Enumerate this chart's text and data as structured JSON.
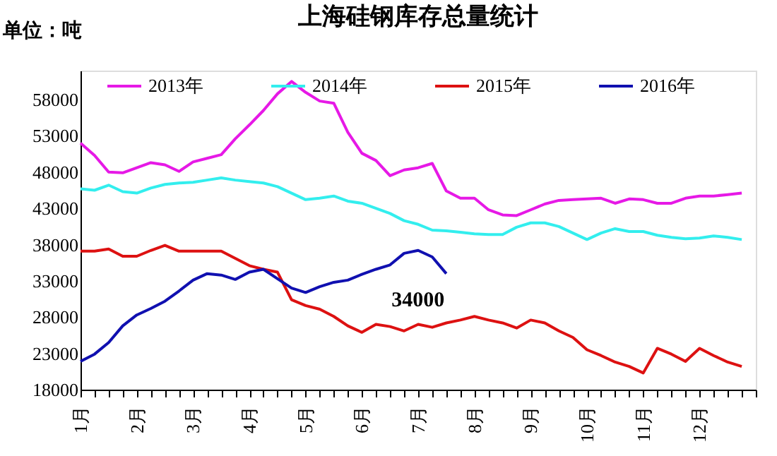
{
  "chart_data": {
    "type": "line",
    "title": "上海硅钢库存总量统计",
    "ylabel": "单位：吨",
    "categories": [
      "1月",
      null,
      null,
      null,
      "2月",
      null,
      null,
      null,
      "3月",
      null,
      null,
      null,
      "4月",
      null,
      null,
      null,
      "5月",
      null,
      null,
      null,
      "6月",
      null,
      null,
      null,
      "7月",
      null,
      null,
      null,
      "8月",
      null,
      null,
      null,
      "9月",
      null,
      null,
      null,
      "10月",
      null,
      null,
      null,
      "11月",
      null,
      null,
      null,
      "12月",
      null,
      null,
      null,
      null
    ],
    "ylim": [
      18000,
      62000
    ],
    "yticks": [
      18000,
      23000,
      28000,
      33000,
      38000,
      43000,
      48000,
      53000,
      58000
    ],
    "grid": false,
    "legend": "top",
    "marker": "none",
    "line_style": "solid",
    "series": [
      {
        "name": "2013年",
        "color": "#e619e6",
        "values": [
          52000,
          50300,
          48000,
          47900,
          48600,
          49300,
          49000,
          48100,
          49400,
          49900,
          50400,
          52600,
          54500,
          56500,
          58800,
          60500,
          59000,
          57800,
          57500,
          53500,
          50600,
          49600,
          47500,
          48300,
          48600,
          49200,
          45400,
          44400,
          44400,
          42800,
          42100,
          42000,
          42800,
          43600,
          44100,
          44200,
          44300,
          44400,
          43700,
          44300,
          44200,
          43700,
          43700,
          44400,
          44700,
          44700,
          44900,
          45100,
          null
        ]
      },
      {
        "name": "2014年",
        "color": "#33eeee",
        "values": [
          45700,
          45500,
          46200,
          45300,
          45100,
          45800,
          46300,
          46500,
          46600,
          46900,
          47200,
          46900,
          46700,
          46500,
          46000,
          45100,
          44200,
          44400,
          44700,
          44000,
          43700,
          43000,
          42300,
          41300,
          40800,
          40000,
          39900,
          39700,
          39500,
          39400,
          39400,
          40400,
          41000,
          41000,
          40500,
          39600,
          38700,
          39600,
          40200,
          39800,
          39800,
          39300,
          39000,
          38800,
          38900,
          39200,
          39000,
          38700,
          null
        ]
      },
      {
        "name": "2015年",
        "color": "#dd1111",
        "values": [
          37100,
          37100,
          37400,
          36400,
          36400,
          37200,
          37900,
          37100,
          37100,
          37100,
          37100,
          36100,
          35100,
          34600,
          34200,
          30400,
          29600,
          29100,
          28100,
          26800,
          25900,
          27000,
          26700,
          26100,
          27000,
          26600,
          27200,
          27600,
          28100,
          27600,
          27200,
          26500,
          27600,
          27200,
          26100,
          25200,
          23500,
          22700,
          21800,
          21200,
          20300,
          23700,
          22900,
          21900,
          23700,
          22700,
          21800,
          21200,
          null
        ]
      },
      {
        "name": "2016年",
        "color": "#1010b0",
        "values": [
          21900,
          22900,
          24500,
          26800,
          28300,
          29200,
          30200,
          31600,
          33100,
          34000,
          33800,
          33200,
          34200,
          34600,
          33300,
          32000,
          31400,
          32200,
          32800,
          33100,
          33900,
          34600,
          35200,
          36800,
          37200,
          36300,
          34000,
          null,
          null,
          null,
          null,
          null,
          null,
          null,
          null,
          null,
          null,
          null,
          null,
          null,
          null,
          null,
          null,
          null,
          null,
          null,
          null,
          null,
          null
        ]
      }
    ],
    "annotations": [
      "34000"
    ]
  }
}
